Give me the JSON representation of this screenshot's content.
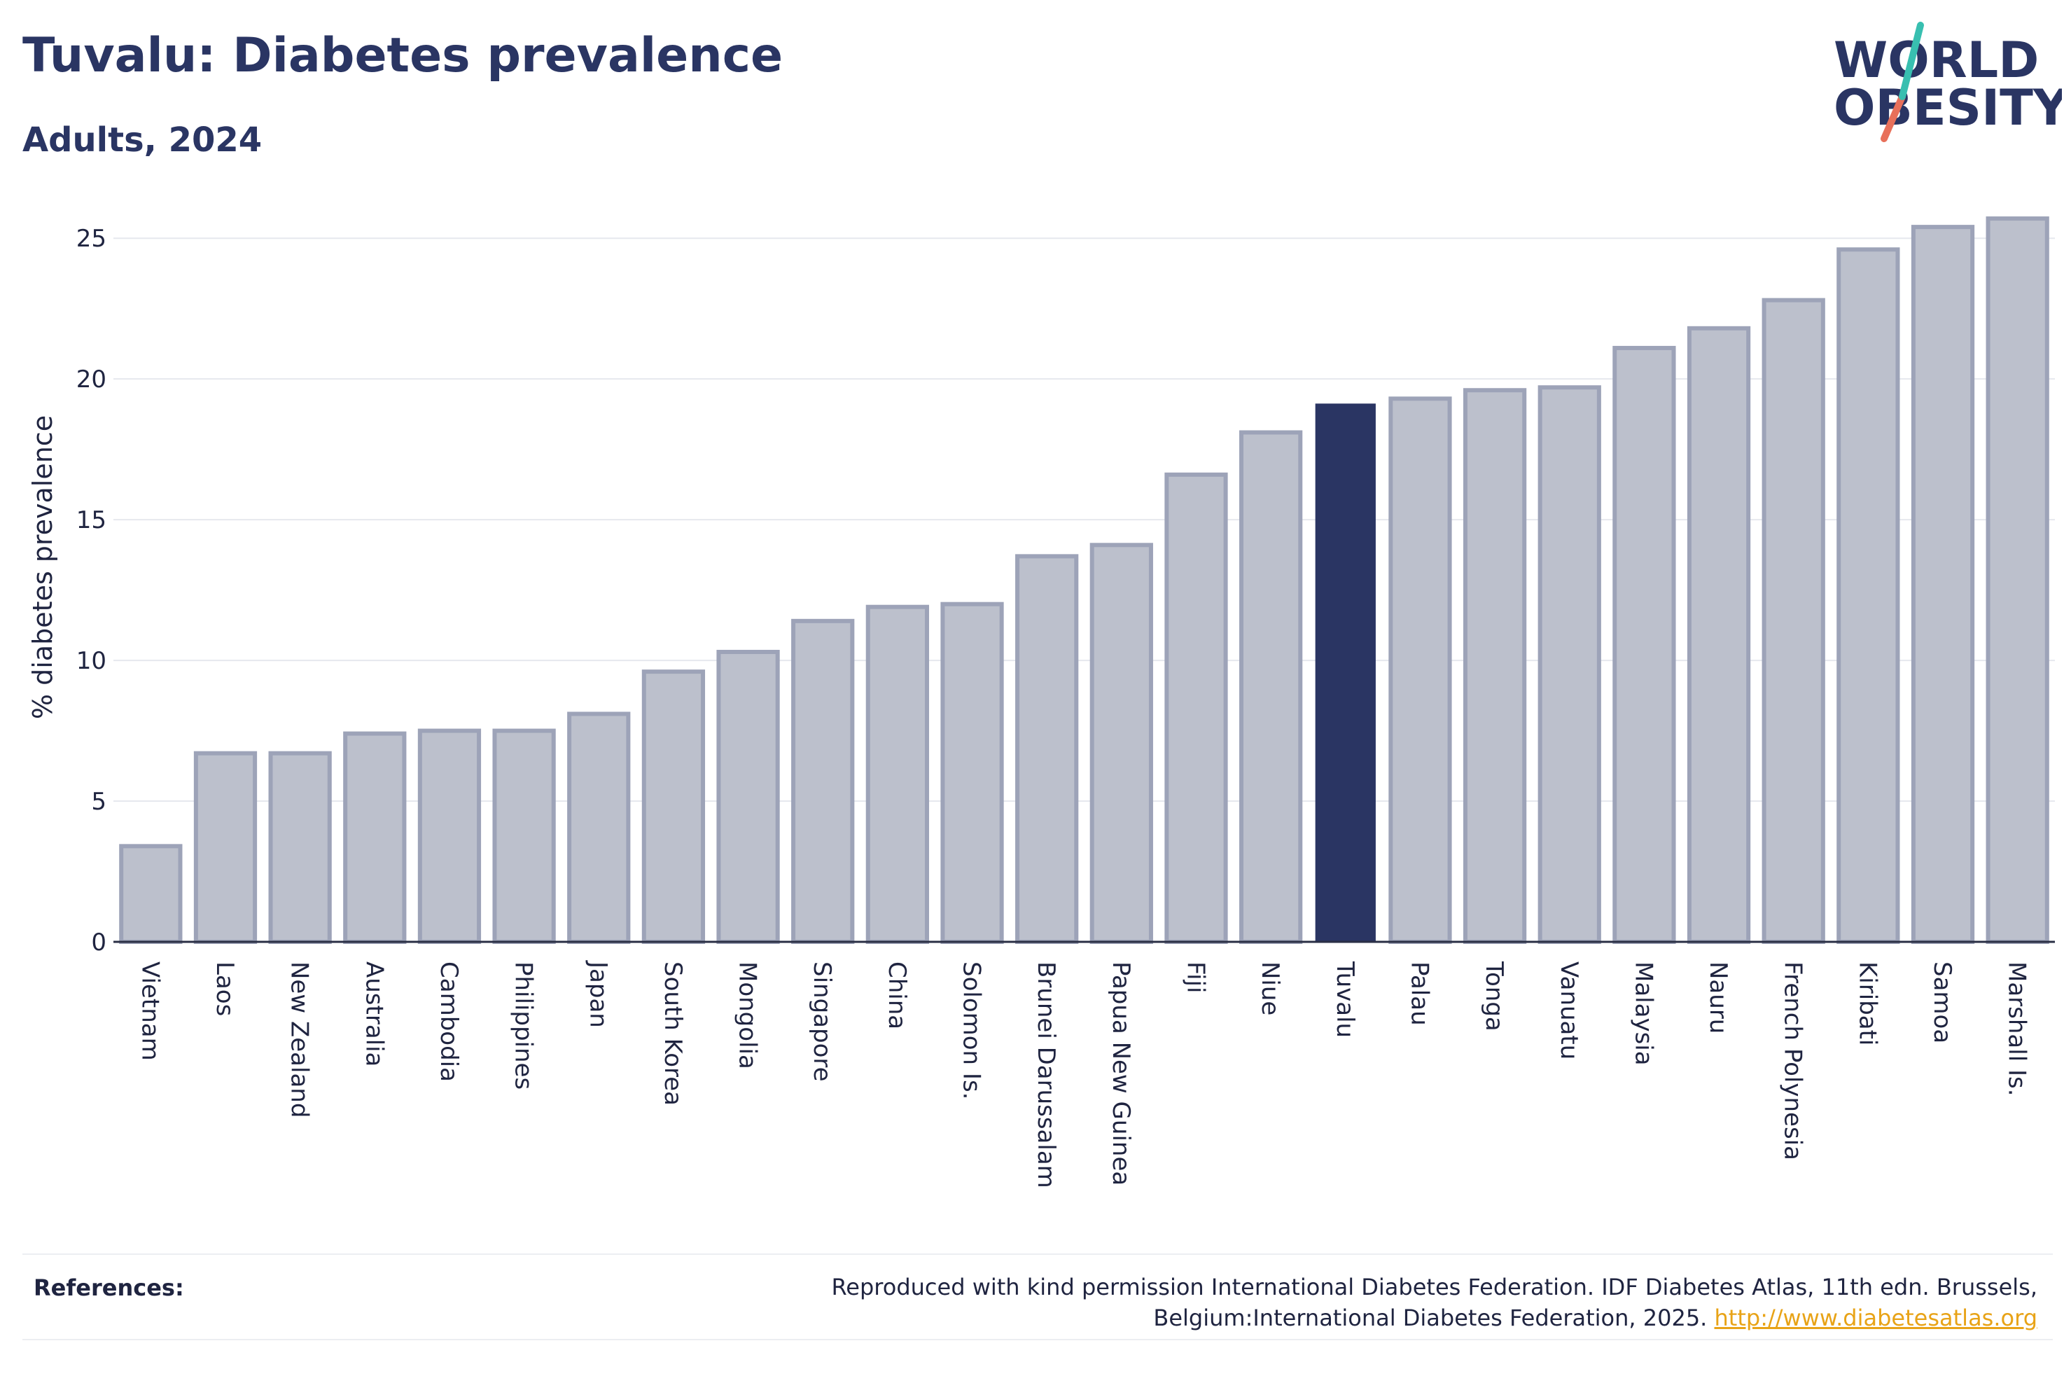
{
  "header": {
    "title": "Tuvalu: Diabetes prevalence",
    "subtitle": "Adults, 2024",
    "logo_line1": "WORLD",
    "logo_line2": "OBESITY"
  },
  "chart_data": {
    "type": "bar",
    "title": "Tuvalu: Diabetes prevalence",
    "subtitle": "Adults, 2024",
    "ylabel": "% diabetes prevalence",
    "xlabel": "",
    "ylim": [
      0,
      26
    ],
    "yticks": [
      0,
      5,
      10,
      15,
      20,
      25
    ],
    "grid": true,
    "highlight": "Tuvalu",
    "colors": {
      "bar": "#bcc0cc",
      "bar_edge": "#9da3b8",
      "highlight": "#2a3563"
    },
    "categories": [
      "Vietnam",
      "Laos",
      "New Zealand",
      "Australia",
      "Cambodia",
      "Philippines",
      "Japan",
      "South Korea",
      "Mongolia",
      "Singapore",
      "China",
      "Solomon Is.",
      "Brunei Darussalam",
      "Papua New Guinea",
      "Fiji",
      "Niue",
      "Tuvalu",
      "Palau",
      "Tonga",
      "Vanuatu",
      "Malaysia",
      "Nauru",
      "French Polynesia",
      "Kiribati",
      "Samoa",
      "Marshall Is."
    ],
    "values": [
      3.4,
      6.7,
      6.7,
      7.4,
      7.5,
      7.5,
      8.1,
      9.6,
      10.3,
      11.4,
      11.9,
      12.0,
      13.7,
      14.1,
      16.6,
      18.1,
      19.1,
      19.3,
      19.6,
      19.7,
      21.1,
      21.8,
      22.8,
      24.6,
      25.4,
      25.7
    ]
  },
  "references": {
    "label": "References:",
    "text": "Reproduced with kind permission International Diabetes Federation. IDF Diabetes Atlas, 11th edn. Brussels, Belgium:International Diabetes Federation, 2025.",
    "link": "http://www.diabetesatlas.org"
  }
}
